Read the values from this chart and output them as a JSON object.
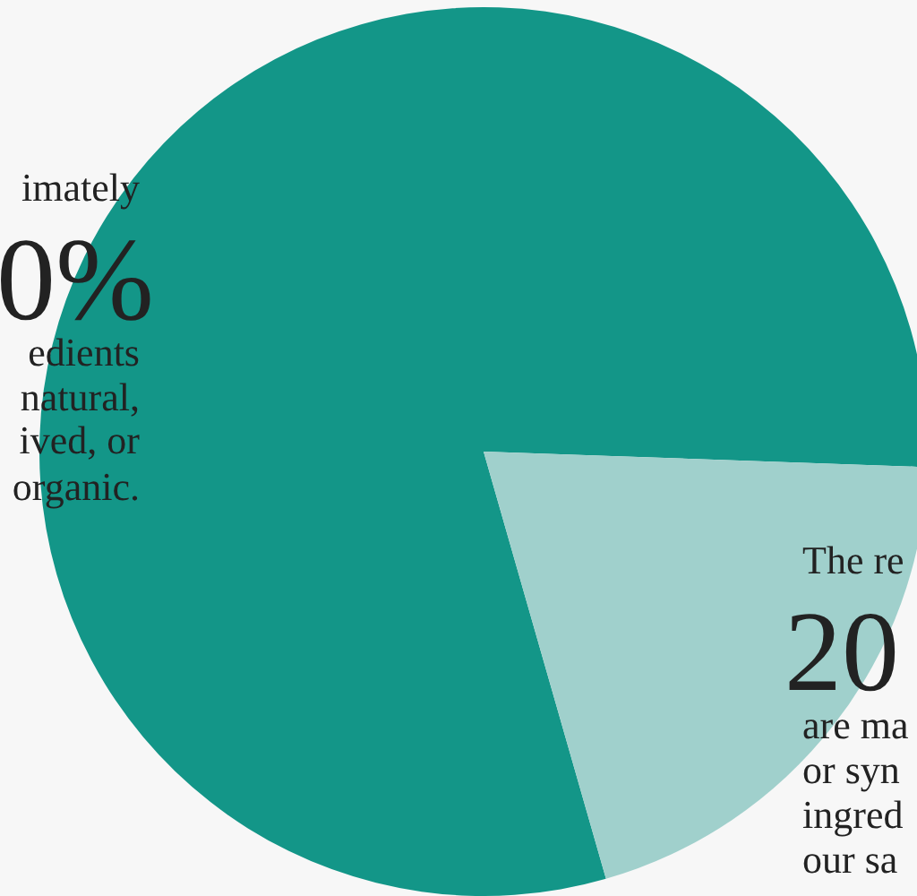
{
  "chart_data": {
    "type": "pie",
    "categories": [
      null,
      null
    ],
    "values": [
      80,
      20
    ],
    "colors": [
      "#139688",
      "#a0d0cc"
    ],
    "annotations": [
      "imately",
      "0%",
      "edients",
      "natural,",
      "ived, or",
      "organic.",
      "The re",
      "20",
      "are ma",
      "or syn",
      "ingred",
      "our sa"
    ]
  }
}
